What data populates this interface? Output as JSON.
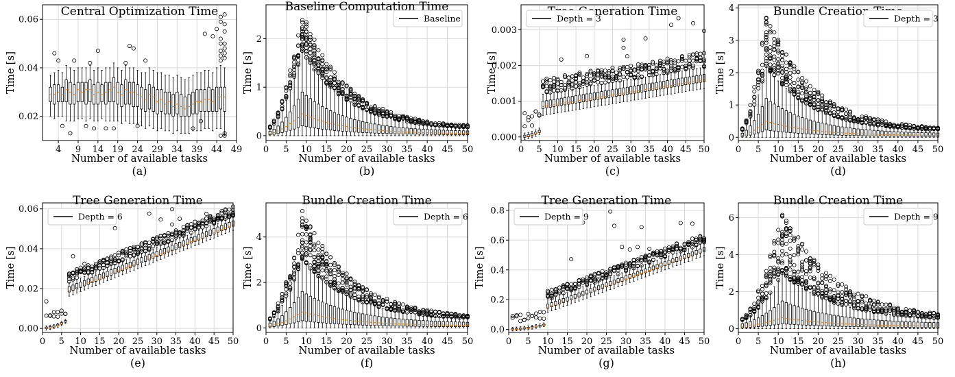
{
  "figure": {
    "median_color": "#ff7f0e",
    "box_color": "#000000",
    "grid_color": "#d9d9d9"
  },
  "chart_data": [
    {
      "type": "box",
      "panel": "(a)",
      "title": "Central Optimization Time",
      "xlabel": "Number of available tasks",
      "ylabel": "Time [s]",
      "xlim": [
        0,
        49
      ],
      "ylim": [
        0.01,
        0.066
      ],
      "xticks": [
        4,
        9,
        14,
        19,
        24,
        29,
        34,
        39,
        44,
        49
      ],
      "yticks": [
        0.02,
        0.04,
        0.06
      ],
      "ytick_labels": [
        "0.02",
        "0.04",
        "0.06"
      ],
      "grid": true,
      "legend": "",
      "x": [
        2,
        3,
        4,
        5,
        6,
        7,
        8,
        9,
        10,
        11,
        12,
        13,
        14,
        15,
        16,
        17,
        18,
        19,
        20,
        21,
        22,
        23,
        24,
        25,
        26,
        27,
        28,
        29,
        30,
        31,
        32,
        33,
        34,
        35,
        36,
        37,
        38,
        39,
        40,
        41,
        42,
        43,
        44,
        45,
        46
      ],
      "median": [
        0.029,
        0.029,
        0.03,
        0.029,
        0.031,
        0.03,
        0.029,
        0.031,
        0.03,
        0.031,
        0.031,
        0.029,
        0.03,
        0.029,
        0.03,
        0.031,
        0.032,
        0.03,
        0.029,
        0.031,
        0.03,
        0.03,
        0.029,
        0.028,
        0.027,
        0.029,
        0.028,
        0.026,
        0.027,
        0.025,
        0.026,
        0.024,
        0.025,
        0.024,
        0.023,
        0.024,
        0.025,
        0.026,
        0.026,
        0.027,
        0.027,
        0.026,
        0.028,
        0.028,
        0.028
      ],
      "q1": [
        0.026,
        0.025,
        0.026,
        0.026,
        0.026,
        0.025,
        0.025,
        0.026,
        0.026,
        0.025,
        0.026,
        0.025,
        0.025,
        0.026,
        0.025,
        0.026,
        0.026,
        0.025,
        0.024,
        0.025,
        0.025,
        0.024,
        0.024,
        0.023,
        0.022,
        0.023,
        0.022,
        0.021,
        0.022,
        0.021,
        0.021,
        0.02,
        0.021,
        0.02,
        0.02,
        0.02,
        0.021,
        0.021,
        0.022,
        0.022,
        0.022,
        0.022,
        0.022,
        0.023,
        0.022
      ],
      "q3": [
        0.032,
        0.033,
        0.033,
        0.032,
        0.035,
        0.034,
        0.033,
        0.034,
        0.034,
        0.034,
        0.035,
        0.033,
        0.034,
        0.033,
        0.034,
        0.034,
        0.036,
        0.034,
        0.033,
        0.035,
        0.034,
        0.034,
        0.033,
        0.032,
        0.031,
        0.033,
        0.032,
        0.031,
        0.031,
        0.03,
        0.03,
        0.029,
        0.03,
        0.029,
        0.028,
        0.029,
        0.03,
        0.031,
        0.031,
        0.031,
        0.032,
        0.031,
        0.032,
        0.032,
        0.032
      ],
      "whisker_low": [
        0.02,
        0.019,
        0.02,
        0.02,
        0.018,
        0.018,
        0.018,
        0.019,
        0.019,
        0.018,
        0.019,
        0.018,
        0.018,
        0.019,
        0.018,
        0.018,
        0.018,
        0.018,
        0.017,
        0.018,
        0.017,
        0.017,
        0.017,
        0.016,
        0.015,
        0.016,
        0.015,
        0.014,
        0.015,
        0.014,
        0.014,
        0.013,
        0.014,
        0.013,
        0.013,
        0.013,
        0.014,
        0.014,
        0.014,
        0.015,
        0.015,
        0.014,
        0.015,
        0.015,
        0.012
      ],
      "whisker_high": [
        0.037,
        0.038,
        0.039,
        0.038,
        0.041,
        0.04,
        0.039,
        0.04,
        0.04,
        0.04,
        0.041,
        0.039,
        0.04,
        0.039,
        0.04,
        0.04,
        0.042,
        0.04,
        0.039,
        0.041,
        0.04,
        0.04,
        0.039,
        0.038,
        0.038,
        0.04,
        0.039,
        0.038,
        0.038,
        0.037,
        0.037,
        0.036,
        0.037,
        0.036,
        0.035,
        0.036,
        0.037,
        0.038,
        0.038,
        0.039,
        0.039,
        0.038,
        0.04,
        0.041,
        0.04
      ],
      "outliers": [
        [
          3,
          0.046
        ],
        [
          4,
          0.043
        ],
        [
          5,
          0.016
        ],
        [
          7,
          0.013
        ],
        [
          8,
          0.043
        ],
        [
          11,
          0.016
        ],
        [
          12,
          0.042
        ],
        [
          13,
          0.015
        ],
        [
          14,
          0.047
        ],
        [
          16,
          0.015
        ],
        [
          18,
          0.015
        ],
        [
          21,
          0.042
        ],
        [
          22,
          0.049
        ],
        [
          23,
          0.048
        ],
        [
          24,
          0.016
        ],
        [
          26,
          0.043
        ],
        [
          38,
          0.015
        ],
        [
          40,
          0.018
        ],
        [
          41,
          0.054
        ],
        [
          43,
          0.053
        ],
        [
          44,
          0.056
        ],
        [
          45,
          0.061
        ],
        [
          45,
          0.059
        ],
        [
          45,
          0.052
        ],
        [
          45,
          0.05
        ],
        [
          45,
          0.047
        ],
        [
          45,
          0.045
        ],
        [
          45,
          0.043
        ],
        [
          45,
          0.012
        ],
        [
          46,
          0.062
        ],
        [
          46,
          0.058
        ],
        [
          46,
          0.055
        ],
        [
          46,
          0.05
        ],
        [
          46,
          0.048
        ],
        [
          46,
          0.046
        ],
        [
          46,
          0.044
        ],
        [
          46,
          0.013
        ],
        [
          46,
          0.012
        ]
      ]
    },
    {
      "type": "box",
      "panel": "(b)",
      "title": "Baseline Computation Time",
      "xlabel": "Number of available tasks",
      "ylabel": "Time [s]",
      "xlim": [
        0,
        50
      ],
      "ylim": [
        -0.1,
        2.7
      ],
      "xticks": [
        0,
        5,
        10,
        15,
        20,
        25,
        30,
        35,
        40,
        45,
        50
      ],
      "yticks": [
        0,
        1,
        2
      ],
      "ytick_labels": [
        "0",
        "1",
        "2"
      ],
      "grid": true,
      "legend": "top-right",
      "legend_entries": [
        "Baseline"
      ],
      "profile": {
        "x_peak": 9,
        "rise_start": 1,
        "tail_level": 0.06,
        "median_peak": 0.45,
        "q3_peak": 0.9,
        "whisker_peak": 1.75,
        "outlier_peak": 2.55,
        "decay_rate": 0.09
      }
    },
    {
      "type": "box",
      "panel": "(c)",
      "title": "Tree Generation Time",
      "xlabel": "Number of available tasks",
      "ylabel": "Time [s]",
      "xlim": [
        0,
        50
      ],
      "ylim": [
        -0.0001,
        0.0037
      ],
      "xticks": [
        0,
        5,
        10,
        15,
        20,
        25,
        30,
        35,
        40,
        45,
        50
      ],
      "yticks": [
        0,
        0.001,
        0.002,
        0.003
      ],
      "ytick_labels": [
        "0.000",
        "0.001",
        "0.002",
        "0.003"
      ],
      "grid": true,
      "legend": "top-left",
      "legend_entries": [
        "Depth = 3"
      ],
      "profile": {
        "x_start": 1,
        "jump_at": 6,
        "median_start": 0.00085,
        "median_end": 0.0016,
        "q3_offset": 0.00015,
        "whisker_offset": 0.00035,
        "outlier_max": 0.0035
      }
    },
    {
      "type": "box",
      "panel": "(d)",
      "title": "Bundle Creation Time",
      "xlabel": "Number of available tasks",
      "ylabel": "Time [s]",
      "xlim": [
        0,
        50
      ],
      "ylim": [
        -0.1,
        4.1
      ],
      "xticks": [
        0,
        5,
        10,
        15,
        20,
        25,
        30,
        35,
        40,
        45,
        50
      ],
      "yticks": [
        0,
        1,
        2,
        3,
        4
      ],
      "ytick_labels": [
        "0",
        "1",
        "2",
        "3",
        "4"
      ],
      "grid": true,
      "legend": "top-right",
      "legend_entries": [
        "Depth = 3"
      ],
      "profile": {
        "x_peak": 7,
        "rise_start": 1,
        "tail_level": 0.08,
        "median_peak": 0.5,
        "q3_peak": 1.2,
        "whisker_peak": 2.2,
        "outlier_peak": 3.9,
        "decay_rate": 0.085
      }
    },
    {
      "type": "box",
      "panel": "(e)",
      "title": "Tree Generation Time",
      "xlabel": "Number of available tasks",
      "ylabel": "Time [s]",
      "xlim": [
        0,
        50
      ],
      "ylim": [
        -0.002,
        0.063
      ],
      "xticks": [
        0,
        5,
        10,
        15,
        20,
        25,
        30,
        35,
        40,
        45,
        50
      ],
      "yticks": [
        0,
        0.02,
        0.04,
        0.06
      ],
      "ytick_labels": [
        "0.00",
        "0.02",
        "0.04",
        "0.06"
      ],
      "grid": true,
      "legend": "top-left",
      "legend_entries": [
        "Depth = 6"
      ],
      "profile": {
        "x_start": 1,
        "jump_at": 7,
        "median_start": 0.019,
        "median_end": 0.052,
        "q3_offset": 0.002,
        "whisker_offset": 0.004,
        "outlier_max": 0.06
      }
    },
    {
      "type": "box",
      "panel": "(f)",
      "title": "Bundle Creation Time",
      "xlabel": "Number of available tasks",
      "ylabel": "Time [s]",
      "xlim": [
        0,
        50
      ],
      "ylim": [
        -0.2,
        5.5
      ],
      "xticks": [
        0,
        5,
        10,
        15,
        20,
        25,
        30,
        35,
        40,
        45,
        50
      ],
      "yticks": [
        0,
        2,
        4
      ],
      "ytick_labels": [
        "0",
        "2",
        "4"
      ],
      "grid": true,
      "legend": "top-right",
      "legend_entries": [
        "Depth = 6"
      ],
      "profile": {
        "x_peak": 9,
        "rise_start": 1,
        "tail_level": 0.15,
        "median_peak": 0.7,
        "q3_peak": 1.6,
        "whisker_peak": 3.0,
        "outlier_peak": 5.2,
        "decay_rate": 0.08
      }
    },
    {
      "type": "box",
      "panel": "(g)",
      "title": "Tree Generation Time",
      "xlabel": "Number of available tasks",
      "ylabel": "Time [s]",
      "xlim": [
        0,
        50
      ],
      "ylim": [
        -0.02,
        0.85
      ],
      "xticks": [
        0,
        5,
        10,
        15,
        20,
        25,
        30,
        35,
        40,
        45,
        50
      ],
      "yticks": [
        0,
        0.2,
        0.4,
        0.6,
        0.8
      ],
      "ytick_labels": [
        "0.0",
        "0.2",
        "0.4",
        "0.6",
        "0.8"
      ],
      "grid": true,
      "legend": "top-left",
      "legend_entries": [
        "Depth = 9"
      ],
      "profile": {
        "x_start": 1,
        "jump_at": 10,
        "median_start": 0.15,
        "median_end": 0.53,
        "q3_offset": 0.02,
        "whisker_offset": 0.05,
        "outlier_max": 0.81
      }
    },
    {
      "type": "box",
      "panel": "(h)",
      "title": "Bundle Creation Time",
      "xlabel": "Number of available tasks",
      "ylabel": "Time [s]",
      "xlim": [
        0,
        50
      ],
      "ylim": [
        -0.2,
        6.8
      ],
      "xticks": [
        0,
        5,
        10,
        15,
        20,
        25,
        30,
        35,
        40,
        45,
        50
      ],
      "yticks": [
        0,
        2,
        4,
        6
      ],
      "ytick_labels": [
        "0",
        "2",
        "4",
        "6"
      ],
      "grid": true,
      "legend": "top-right",
      "legend_entries": [
        "Depth = 9"
      ],
      "profile": {
        "x_peak": 11,
        "rise_start": 1,
        "tail_level": 0.2,
        "median_peak": 0.6,
        "q3_peak": 1.5,
        "whisker_peak": 3.0,
        "outlier_peak": 6.5,
        "decay_rate": 0.075
      }
    }
  ]
}
